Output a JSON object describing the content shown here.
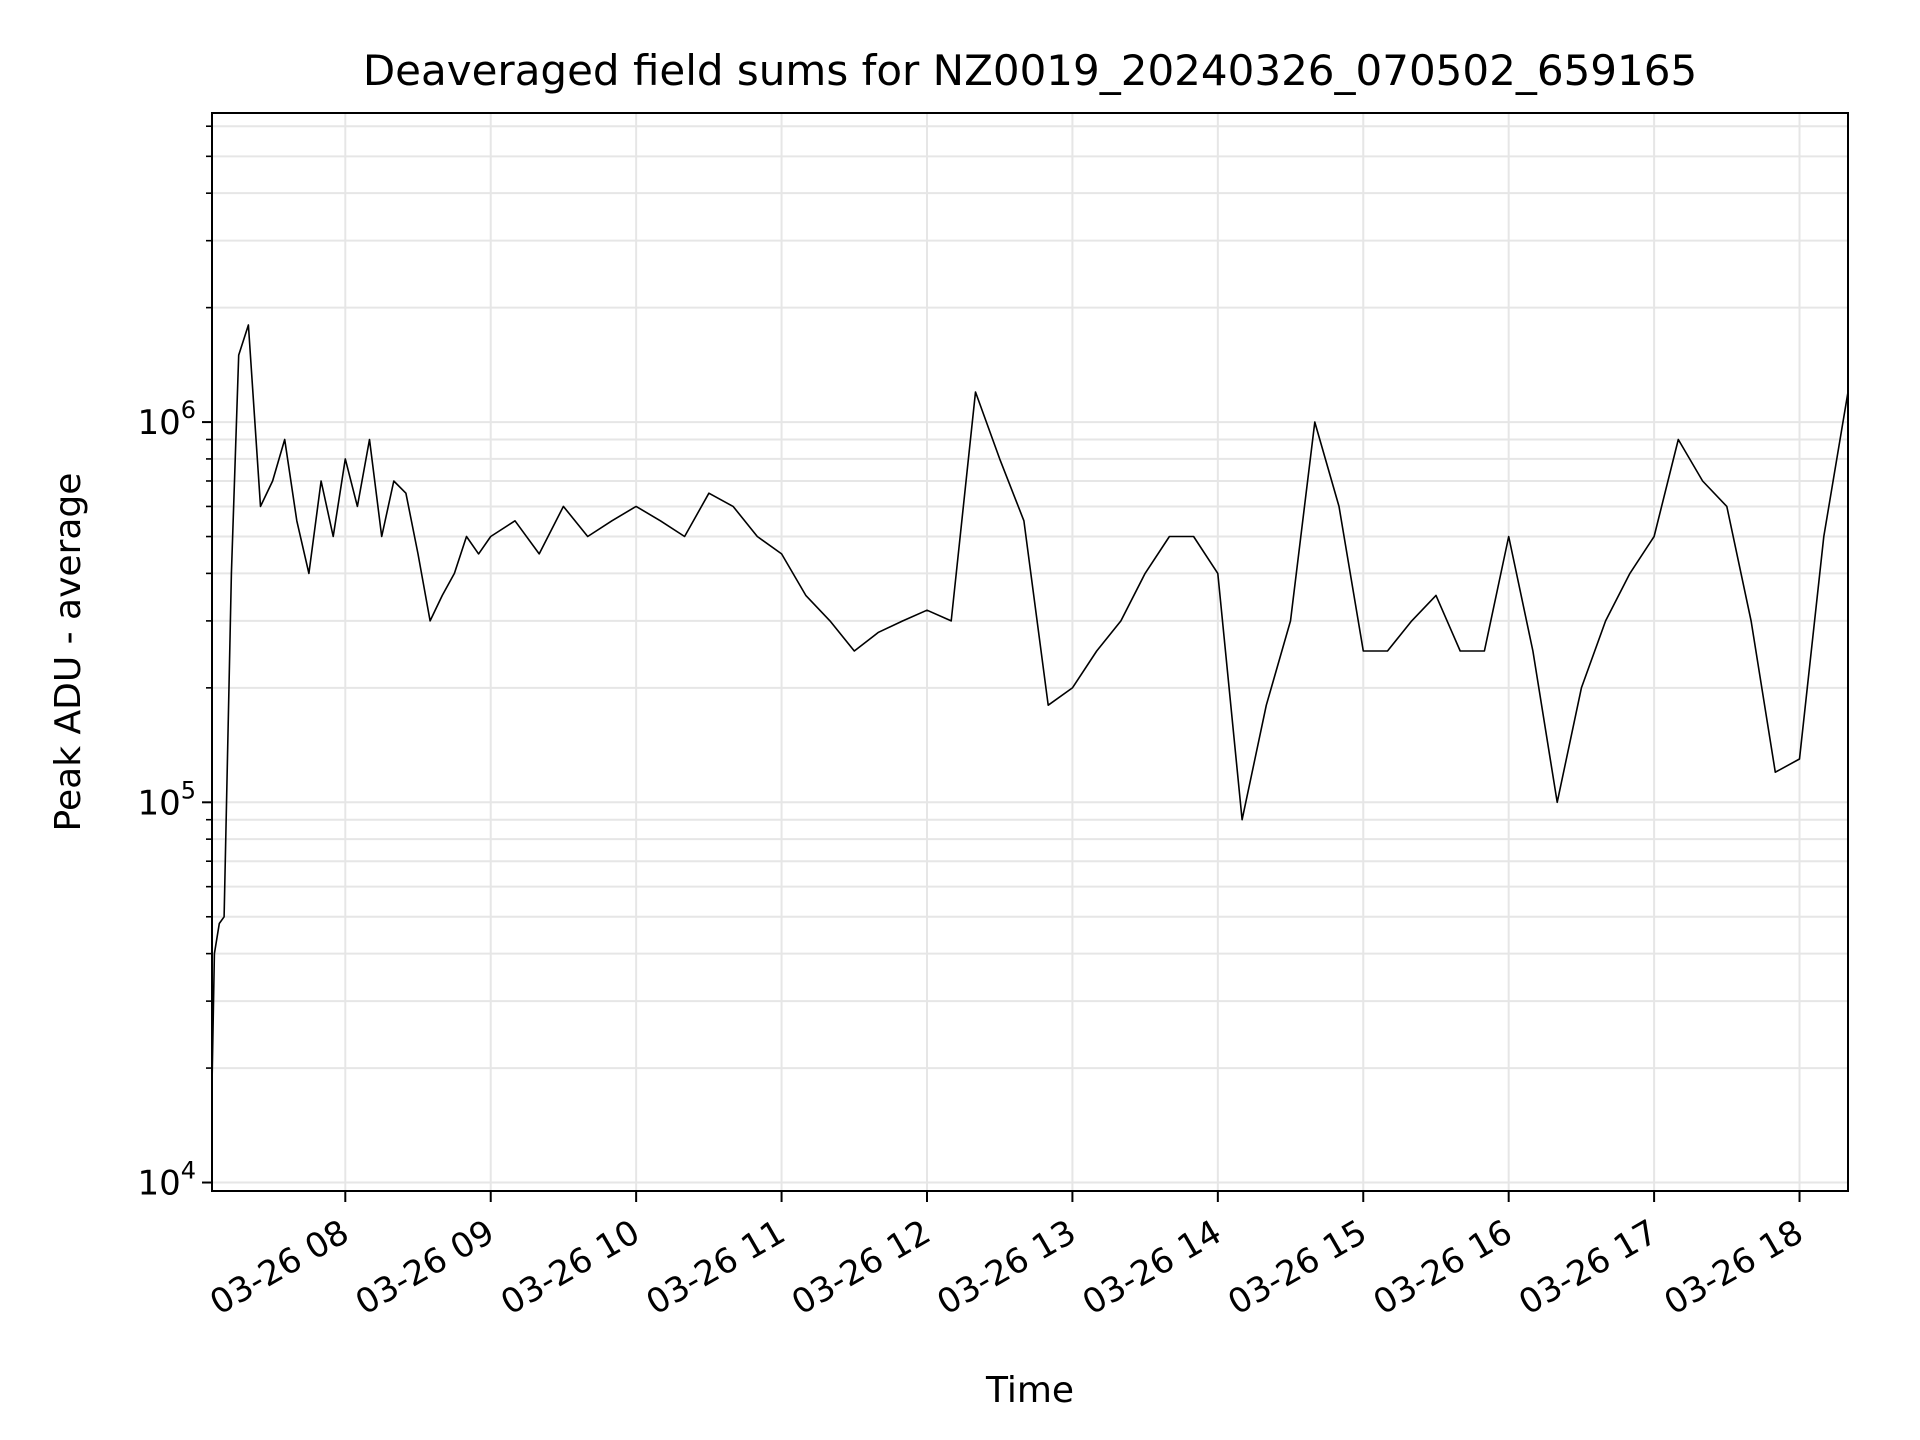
{
  "chart_data": {
    "type": "line",
    "title": "Deaveraged field sums for NZ0019_20240326_070502_659165",
    "xlabel": "Time",
    "ylabel": "Peak ADU - average",
    "x_scale": "time",
    "y_scale": "log",
    "xlim": [
      "2024-03-26 07:05",
      "2024-03-26 18:20"
    ],
    "ylim": [
      9500,
      6500000
    ],
    "x_ticks": [
      {
        "value": "2024-03-26 08:00",
        "label": "03-26 08"
      },
      {
        "value": "2024-03-26 09:00",
        "label": "03-26 09"
      },
      {
        "value": "2024-03-26 10:00",
        "label": "03-26 10"
      },
      {
        "value": "2024-03-26 11:00",
        "label": "03-26 11"
      },
      {
        "value": "2024-03-26 12:00",
        "label": "03-26 12"
      },
      {
        "value": "2024-03-26 13:00",
        "label": "03-26 13"
      },
      {
        "value": "2024-03-26 14:00",
        "label": "03-26 14"
      },
      {
        "value": "2024-03-26 15:00",
        "label": "03-26 15"
      },
      {
        "value": "2024-03-26 16:00",
        "label": "03-26 16"
      },
      {
        "value": "2024-03-26 17:00",
        "label": "03-26 17"
      },
      {
        "value": "2024-03-26 18:00",
        "label": "03-26 18"
      }
    ],
    "y_ticks": [
      {
        "value": 10000,
        "base": "10",
        "exp": "4"
      },
      {
        "value": 100000,
        "base": "10",
        "exp": "5"
      },
      {
        "value": 1000000,
        "base": "10",
        "exp": "6"
      }
    ],
    "grid": true,
    "grid_minor_y": true,
    "line_color": "#000000",
    "grid_color": "#e6e6e6",
    "series": [
      {
        "x": [
          "2024-03-26 07:05",
          "2024-03-26 07:06",
          "2024-03-26 07:08",
          "2024-03-26 07:10",
          "2024-03-26 07:13",
          "2024-03-26 07:16",
          "2024-03-26 07:20",
          "2024-03-26 07:25",
          "2024-03-26 07:30",
          "2024-03-26 07:35",
          "2024-03-26 07:40",
          "2024-03-26 07:45",
          "2024-03-26 07:50",
          "2024-03-26 07:55",
          "2024-03-26 08:00",
          "2024-03-26 08:05",
          "2024-03-26 08:10",
          "2024-03-26 08:15",
          "2024-03-26 08:20",
          "2024-03-26 08:25",
          "2024-03-26 08:30",
          "2024-03-26 08:35",
          "2024-03-26 08:40",
          "2024-03-26 08:45",
          "2024-03-26 08:50",
          "2024-03-26 08:55",
          "2024-03-26 09:00",
          "2024-03-26 09:10",
          "2024-03-26 09:20",
          "2024-03-26 09:30",
          "2024-03-26 09:40",
          "2024-03-26 09:50",
          "2024-03-26 10:00",
          "2024-03-26 10:10",
          "2024-03-26 10:20",
          "2024-03-26 10:30",
          "2024-03-26 10:40",
          "2024-03-26 10:50",
          "2024-03-26 11:00",
          "2024-03-26 11:10",
          "2024-03-26 11:20",
          "2024-03-26 11:30",
          "2024-03-26 11:40",
          "2024-03-26 11:50",
          "2024-03-26 12:00",
          "2024-03-26 12:10",
          "2024-03-26 12:20",
          "2024-03-26 12:30",
          "2024-03-26 12:40",
          "2024-03-26 12:50",
          "2024-03-26 13:00",
          "2024-03-26 13:10",
          "2024-03-26 13:20",
          "2024-03-26 13:30",
          "2024-03-26 13:40",
          "2024-03-26 13:50",
          "2024-03-26 14:00",
          "2024-03-26 14:10",
          "2024-03-26 14:20",
          "2024-03-26 14:30",
          "2024-03-26 14:40",
          "2024-03-26 14:50",
          "2024-03-26 15:00",
          "2024-03-26 15:10",
          "2024-03-26 15:20",
          "2024-03-26 15:30",
          "2024-03-26 15:40",
          "2024-03-26 15:50",
          "2024-03-26 16:00",
          "2024-03-26 16:10",
          "2024-03-26 16:20",
          "2024-03-26 16:30",
          "2024-03-26 16:40",
          "2024-03-26 16:50",
          "2024-03-26 17:00",
          "2024-03-26 17:10",
          "2024-03-26 17:20",
          "2024-03-26 17:30",
          "2024-03-26 17:40",
          "2024-03-26 17:50",
          "2024-03-26 18:00",
          "2024-03-26 18:10",
          "2024-03-26 18:20"
        ],
        "y": [
          18000,
          40000,
          48000,
          50000,
          400000,
          1500000,
          1800000,
          600000,
          700000,
          900000,
          550000,
          400000,
          700000,
          500000,
          800000,
          600000,
          900000,
          500000,
          700000,
          650000,
          450000,
          300000,
          350000,
          400000,
          500000,
          450000,
          500000,
          550000,
          450000,
          600000,
          500000,
          550000,
          600000,
          550000,
          500000,
          650000,
          600000,
          500000,
          450000,
          350000,
          300000,
          250000,
          280000,
          300000,
          320000,
          300000,
          1200000,
          800000,
          550000,
          180000,
          200000,
          250000,
          300000,
          400000,
          500000,
          500000,
          400000,
          90000,
          180000,
          300000,
          1000000,
          600000,
          250000,
          250000,
          300000,
          350000,
          250000,
          250000,
          500000,
          250000,
          100000,
          200000,
          300000,
          400000,
          500000,
          900000,
          700000,
          600000,
          300000,
          120000,
          130000,
          500000,
          1200000
        ]
      }
    ]
  }
}
